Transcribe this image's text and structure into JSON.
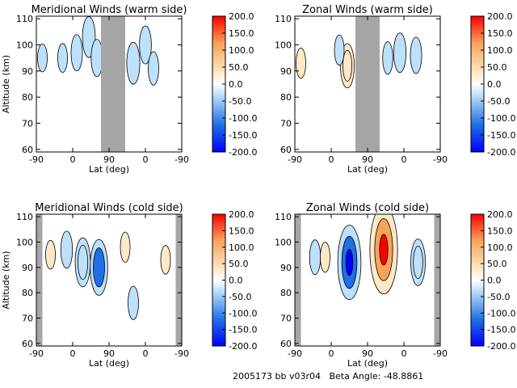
{
  "footer": {
    "text": "2005173 bb v03r04   Beta Angle: -48.8861"
  },
  "colors": {
    "neg_strong": "#0000ff",
    "neg_mid": "#1f6fe6",
    "neg_light": "#bde0fb",
    "zero": "#ffffff",
    "pos_light": "#fde9c8",
    "pos_mid": "#f7a35a",
    "pos_strong": "#ff0000",
    "mask": "#a6a6a6"
  },
  "chart_data": [
    {
      "type": "heatmap",
      "title": "Meridional Winds (warm side)",
      "xlabel": "Lat (deg)",
      "ylabel": "Altitude (km)",
      "xticks": [
        "-90",
        "0",
        "90",
        "0",
        "-90"
      ],
      "yticks": [
        "60",
        "70",
        "80",
        "90",
        "100",
        "110"
      ],
      "ylim": [
        59,
        111
      ],
      "colorbar": {
        "range": [
          -200,
          200
        ],
        "ticks": [
          "200.0",
          "150.0",
          "100.0",
          "50.0",
          "0.0",
          "-50.0",
          "-100.0",
          "-150.0",
          "-200.0"
        ]
      },
      "masked_x_ranges": [
        [
          70,
          130
        ]
      ],
      "features": [
        {
          "x": -25,
          "y": 95,
          "value": -12
        },
        {
          "x": 10,
          "y": 97,
          "value": -28
        },
        {
          "x": 40,
          "y": 103,
          "value": -38
        },
        {
          "x": 60,
          "y": 95,
          "value": -30
        },
        {
          "x": 150,
          "y": 93,
          "value": -40
        },
        {
          "x": 180,
          "y": 100,
          "value": -32
        },
        {
          "x": 200,
          "y": 91,
          "value": -22
        },
        {
          "x": -75,
          "y": 95,
          "value": -10
        }
      ]
    },
    {
      "type": "heatmap",
      "title": "Zonal Winds (warm side)",
      "xlabel": "Lat (deg)",
      "ylabel": "",
      "xticks": [
        "-90",
        "0",
        "90",
        "0",
        "-90"
      ],
      "yticks": [
        "60",
        "70",
        "80",
        "90",
        "100",
        "110"
      ],
      "ylim": [
        59,
        111
      ],
      "colorbar": {
        "range": [
          -200,
          200
        ],
        "ticks": [
          "200.0",
          "150.0",
          "100.0",
          "50.0",
          "0.0",
          "-50.0",
          "-100.0",
          "-150.0",
          "-200.0"
        ]
      },
      "masked_x_ranges": [
        [
          60,
          120
        ]
      ],
      "features": [
        {
          "x": -75,
          "y": 93,
          "value": 15
        },
        {
          "x": 40,
          "y": 92,
          "value": 45
        },
        {
          "x": 20,
          "y": 98,
          "value": -15
        },
        {
          "x": 140,
          "y": 95,
          "value": -20
        },
        {
          "x": 170,
          "y": 97,
          "value": -35
        },
        {
          "x": 210,
          "y": 96,
          "value": -28
        }
      ]
    },
    {
      "type": "heatmap",
      "title": "Meridional Winds (cold side)",
      "xlabel": "Lat (deg)",
      "ylabel": "Altitude (km)",
      "xticks": [
        "-90",
        "0",
        "90",
        "0",
        "-90"
      ],
      "yticks": [
        "60",
        "70",
        "80",
        "90",
        "100",
        "110"
      ],
      "ylim": [
        59,
        111
      ],
      "colorbar": {
        "range": [
          -200,
          200
        ],
        "ticks": [
          "200.0",
          "150.0",
          "100.0",
          "50.0",
          "0.0",
          "-50.0",
          "-100.0",
          "-150.0",
          "-200.0"
        ]
      },
      "masked_x_ranges": [
        [
          -90,
          -75
        ],
        [
          255,
          270
        ]
      ],
      "features": [
        {
          "x": -55,
          "y": 95,
          "value": 12
        },
        {
          "x": -15,
          "y": 97,
          "value": -30
        },
        {
          "x": 25,
          "y": 92,
          "value": -55
        },
        {
          "x": 65,
          "y": 90,
          "value": -70
        },
        {
          "x": 130,
          "y": 98,
          "value": 15
        },
        {
          "x": 150,
          "y": 76,
          "value": -22
        },
        {
          "x": 230,
          "y": 93,
          "value": 12
        }
      ]
    },
    {
      "type": "heatmap",
      "title": "Zonal Winds (cold side)",
      "xlabel": "Lat (deg)",
      "ylabel": "",
      "xticks": [
        "-90",
        "0",
        "90",
        "0",
        "-90"
      ],
      "yticks": [
        "60",
        "70",
        "80",
        "90",
        "100",
        "110"
      ],
      "ylim": [
        59,
        111
      ],
      "colorbar": {
        "range": [
          -200,
          200
        ],
        "ticks": [
          "200.0",
          "150.0",
          "100.0",
          "50.0",
          "0.0",
          "-50.0",
          "-100.0",
          "-150.0",
          "-200.0"
        ]
      },
      "masked_x_ranges": [
        [
          -90,
          -75
        ],
        [
          255,
          270
        ]
      ],
      "features": [
        {
          "x": -40,
          "y": 94,
          "value": -25
        },
        {
          "x": -15,
          "y": 94,
          "value": 15
        },
        {
          "x": 45,
          "y": 92,
          "value": -110
        },
        {
          "x": 130,
          "y": 97,
          "value": 140
        },
        {
          "x": 215,
          "y": 92,
          "value": -50
        }
      ]
    }
  ]
}
